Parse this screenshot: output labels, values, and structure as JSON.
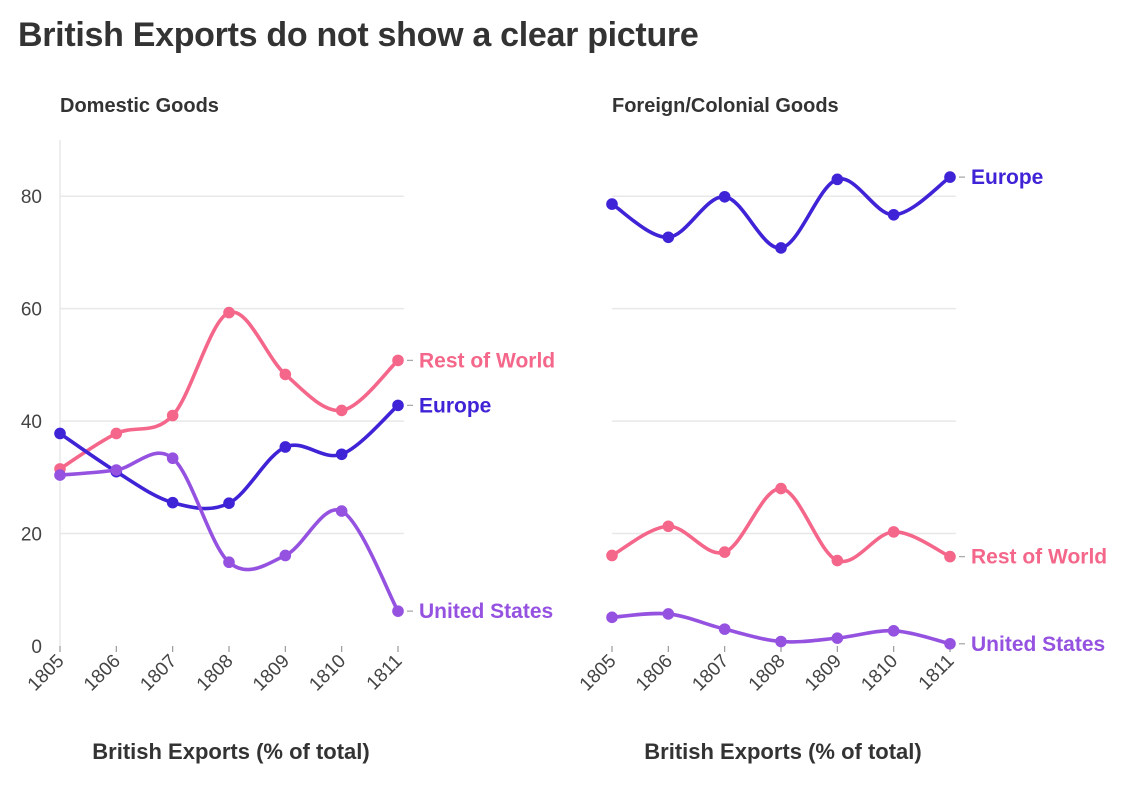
{
  "title": "British Exports do not show a clear picture",
  "colors": {
    "Europe": "#3f23d6",
    "Rest of World": "#f4678a",
    "United States": "#9552e0"
  },
  "chart_data": [
    {
      "type": "line",
      "title": "Domestic Goods",
      "xlabel": "British Exports (% of total)",
      "ylabel": "",
      "x": [
        1805,
        1806,
        1807,
        1808,
        1809,
        1810,
        1811
      ],
      "ylim": [
        0,
        90
      ],
      "yticks": [
        0,
        20,
        40,
        60,
        80
      ],
      "grid": true,
      "series": [
        {
          "name": "Rest of World",
          "values": [
            31.5,
            37.8,
            41.0,
            59.3,
            48.3,
            41.9,
            50.8
          ]
        },
        {
          "name": "Europe",
          "values": [
            37.8,
            31.0,
            25.5,
            25.4,
            35.4,
            34.1,
            42.8
          ]
        },
        {
          "name": "United States",
          "values": [
            30.4,
            31.3,
            33.4,
            14.9,
            16.1,
            24.0,
            6.2
          ]
        }
      ]
    },
    {
      "type": "line",
      "title": "Foreign/Colonial Goods",
      "xlabel": "British Exports (% of total)",
      "ylabel": "",
      "x": [
        1805,
        1806,
        1807,
        1808,
        1809,
        1810,
        1811
      ],
      "ylim": [
        0,
        90
      ],
      "yticks": [
        0,
        20,
        40,
        60,
        80
      ],
      "grid": true,
      "series": [
        {
          "name": "Europe",
          "values": [
            78.6,
            72.7,
            79.9,
            70.8,
            83.0,
            76.7,
            83.4
          ]
        },
        {
          "name": "Rest of World",
          "values": [
            16.1,
            21.3,
            16.7,
            28.0,
            15.2,
            20.3,
            15.9
          ]
        },
        {
          "name": "United States",
          "values": [
            5.1,
            5.7,
            3.0,
            0.8,
            1.4,
            2.7,
            0.4
          ]
        }
      ]
    }
  ]
}
